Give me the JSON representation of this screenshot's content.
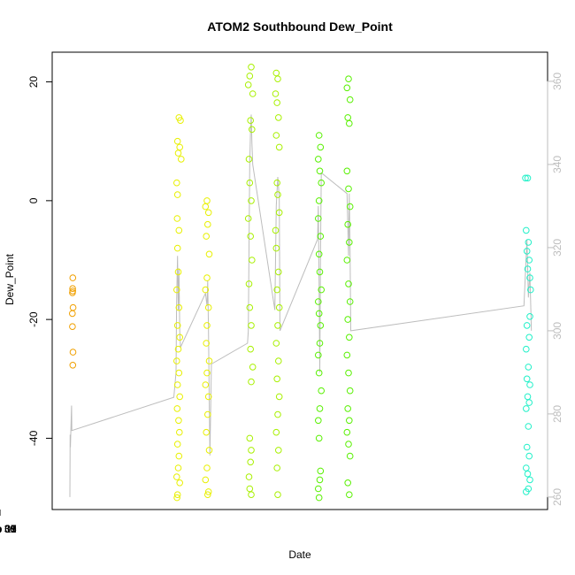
{
  "chart_data": {
    "type": "scatter",
    "title": "ATOM2 Southbound Dew_Point",
    "xlabel": "Date",
    "ylabel": "Dew_Point",
    "xlim": [
      "2023-01-28T12:00",
      "2023-02-11T12:00"
    ],
    "ylim": [
      -52,
      25
    ],
    "y2lim": [
      257,
      367
    ],
    "x_ticks": [
      {
        "value": "2023-01-30",
        "label": "Jan 30"
      },
      {
        "value": "2023-02-01",
        "label": "Feb 01"
      },
      {
        "value": "2023-02-03",
        "label": "Feb 03"
      },
      {
        "value": "2023-02-05",
        "label": "Feb 05"
      },
      {
        "value": "2023-02-07",
        "label": "Feb 07"
      },
      {
        "value": "2023-02-09",
        "label": "Feb 09"
      },
      {
        "value": "2023-02-11",
        "label": "Feb 11"
      }
    ],
    "y_ticks": [
      -40,
      -20,
      0,
      20
    ],
    "y2_ticks": [
      260,
      280,
      300,
      320,
      340,
      360
    ],
    "series": [
      {
        "color": "#f0a000",
        "points": [
          [
            "2023-01-29T02:00",
            -13
          ],
          [
            "2023-01-29T01:50",
            -14.8
          ],
          [
            "2023-01-29T01:45",
            -15.5
          ],
          [
            "2023-01-29T01:55",
            -15.2
          ],
          [
            "2023-01-29T02:10",
            -18
          ],
          [
            "2023-01-29T01:40",
            -19
          ],
          [
            "2023-01-29T01:45",
            -21.2
          ],
          [
            "2023-01-29T02:05",
            -25.5
          ],
          [
            "2023-01-29T02:00",
            -27.7
          ]
        ]
      },
      {
        "color": "#e8f000",
        "points": [
          [
            "2023-02-01T02:00",
            14
          ],
          [
            "2023-02-01T03:00",
            13.5
          ],
          [
            "2023-02-01T01:00",
            10
          ],
          [
            "2023-02-01T02:30",
            9
          ],
          [
            "2023-02-01T01:30",
            8
          ],
          [
            "2023-02-01T03:30",
            7
          ],
          [
            "2023-02-01T00:30",
            3
          ],
          [
            "2023-02-01T01:00",
            1
          ],
          [
            "2023-02-01T00:45",
            -3
          ],
          [
            "2023-02-01T02:00",
            -5
          ],
          [
            "2023-02-01T01:00",
            -8
          ],
          [
            "2023-02-01T01:30",
            -12
          ],
          [
            "2023-02-01T00:30",
            -15
          ],
          [
            "2023-02-01T02:00",
            -18
          ],
          [
            "2023-02-01T01:00",
            -21
          ],
          [
            "2023-02-01T02:30",
            -23
          ],
          [
            "2023-02-01T01:30",
            -25
          ],
          [
            "2023-02-01T00:30",
            -27
          ],
          [
            "2023-02-01T02:00",
            -29
          ],
          [
            "2023-02-01T01:00",
            -31
          ],
          [
            "2023-02-01T02:30",
            -33
          ],
          [
            "2023-02-01T00:45",
            -35
          ],
          [
            "2023-02-01T01:45",
            -37
          ],
          [
            "2023-02-01T02:15",
            -39
          ],
          [
            "2023-02-01T01:00",
            -41
          ],
          [
            "2023-02-01T02:00",
            -43
          ],
          [
            "2023-02-01T01:30",
            -45
          ],
          [
            "2023-02-01T00:30",
            -46.5
          ],
          [
            "2023-02-01T02:30",
            -47.5
          ],
          [
            "2023-02-01T01:00",
            -49.5
          ],
          [
            "2023-02-01T00:40",
            -50
          ],
          [
            "2023-02-01T21:00",
            0
          ],
          [
            "2023-02-01T20:00",
            -1
          ],
          [
            "2023-02-01T22:00",
            -2
          ],
          [
            "2023-02-01T21:30",
            -4
          ],
          [
            "2023-02-01T20:30",
            -6
          ],
          [
            "2023-02-01T22:30",
            -9
          ],
          [
            "2023-02-01T21:00",
            -13
          ],
          [
            "2023-02-01T20:00",
            -15
          ],
          [
            "2023-02-01T22:00",
            -18
          ],
          [
            "2023-02-01T21:00",
            -21
          ],
          [
            "2023-02-01T20:30",
            -24
          ],
          [
            "2023-02-01T22:30",
            -27
          ],
          [
            "2023-02-01T21:00",
            -29
          ],
          [
            "2023-02-01T20:00",
            -31
          ],
          [
            "2023-02-01T22:00",
            -33
          ],
          [
            "2023-02-01T21:30",
            -36
          ],
          [
            "2023-02-01T20:30",
            -39
          ],
          [
            "2023-02-01T22:30",
            -42
          ],
          [
            "2023-02-01T21:00",
            -45
          ],
          [
            "2023-02-01T20:00",
            -47
          ],
          [
            "2023-02-01T22:00",
            -49
          ],
          [
            "2023-02-01T21:30",
            -49.5
          ]
        ]
      },
      {
        "color": "#a8f000",
        "points": [
          [
            "2023-02-03T03:00",
            22.5
          ],
          [
            "2023-02-03T02:00",
            21
          ],
          [
            "2023-02-03T01:00",
            19.5
          ],
          [
            "2023-02-03T04:00",
            18
          ],
          [
            "2023-02-03T02:30",
            13.5
          ],
          [
            "2023-02-03T03:30",
            12
          ],
          [
            "2023-02-03T01:30",
            7
          ],
          [
            "2023-02-03T02:00",
            3
          ],
          [
            "2023-02-03T03:00",
            0
          ],
          [
            "2023-02-03T01:00",
            -3
          ],
          [
            "2023-02-03T02:30",
            -6
          ],
          [
            "2023-02-03T03:30",
            -10
          ],
          [
            "2023-02-03T01:30",
            -14
          ],
          [
            "2023-02-03T02:00",
            -18
          ],
          [
            "2023-02-03T03:00",
            -21
          ],
          [
            "2023-02-03T02:30",
            -25
          ],
          [
            "2023-02-03T04:00",
            -28
          ],
          [
            "2023-02-03T03:00",
            -30.5
          ],
          [
            "2023-02-03T02:00",
            -40
          ],
          [
            "2023-02-03T03:00",
            -42
          ],
          [
            "2023-02-03T02:30",
            -44
          ],
          [
            "2023-02-03T01:30",
            -46.5
          ],
          [
            "2023-02-03T02:00",
            -48.5
          ],
          [
            "2023-02-03T03:00",
            -49.5
          ],
          [
            "2023-02-03T20:00",
            21.5
          ],
          [
            "2023-02-03T21:00",
            20.5
          ],
          [
            "2023-02-03T19:30",
            18
          ],
          [
            "2023-02-03T20:30",
            16.5
          ],
          [
            "2023-02-03T21:30",
            14
          ],
          [
            "2023-02-03T20:00",
            11
          ],
          [
            "2023-02-03T22:00",
            9
          ],
          [
            "2023-02-03T20:30",
            3
          ],
          [
            "2023-02-03T21:00",
            1
          ],
          [
            "2023-02-03T22:00",
            -2
          ],
          [
            "2023-02-03T19:30",
            -5
          ],
          [
            "2023-02-03T20:00",
            -8
          ],
          [
            "2023-02-03T21:30",
            -12
          ],
          [
            "2023-02-03T20:30",
            -15
          ],
          [
            "2023-02-03T22:00",
            -18
          ],
          [
            "2023-02-03T21:00",
            -21
          ],
          [
            "2023-02-03T20:00",
            -24
          ],
          [
            "2023-02-03T21:30",
            -27
          ],
          [
            "2023-02-03T20:30",
            -30
          ],
          [
            "2023-02-03T22:00",
            -33
          ],
          [
            "2023-02-03T21:00",
            -36
          ],
          [
            "2023-02-03T20:00",
            -39
          ],
          [
            "2023-02-03T21:30",
            -42
          ],
          [
            "2023-02-03T20:30",
            -45
          ],
          [
            "2023-02-03T21:00",
            -49.5
          ]
        ]
      },
      {
        "color": "#58f000",
        "points": [
          [
            "2023-02-05T01:00",
            11
          ],
          [
            "2023-02-05T02:00",
            9
          ],
          [
            "2023-02-05T00:30",
            7
          ],
          [
            "2023-02-05T01:30",
            5
          ],
          [
            "2023-02-05T02:30",
            3
          ],
          [
            "2023-02-05T01:00",
            0
          ],
          [
            "2023-02-05T00:30",
            -3
          ],
          [
            "2023-02-05T02:00",
            -6
          ],
          [
            "2023-02-05T01:00",
            -9
          ],
          [
            "2023-02-05T01:30",
            -12
          ],
          [
            "2023-02-05T02:30",
            -15
          ],
          [
            "2023-02-05T00:30",
            -17
          ],
          [
            "2023-02-05T01:00",
            -19
          ],
          [
            "2023-02-05T02:00",
            -21
          ],
          [
            "2023-02-05T01:30",
            -24
          ],
          [
            "2023-02-05T00:30",
            -26
          ],
          [
            "2023-02-05T01:00",
            -29
          ],
          [
            "2023-02-05T02:30",
            -32
          ],
          [
            "2023-02-05T01:30",
            -35
          ],
          [
            "2023-02-05T00:30",
            -37
          ],
          [
            "2023-02-05T01:00",
            -40
          ],
          [
            "2023-02-05T02:00",
            -45.5
          ],
          [
            "2023-02-05T01:30",
            -47
          ],
          [
            "2023-02-05T00:30",
            -48.5
          ],
          [
            "2023-02-05T01:00",
            -50
          ],
          [
            "2023-02-05T21:00",
            20.5
          ],
          [
            "2023-02-05T20:00",
            19
          ],
          [
            "2023-02-05T22:00",
            17
          ],
          [
            "2023-02-05T20:30",
            14
          ],
          [
            "2023-02-05T21:30",
            13
          ],
          [
            "2023-02-05T20:00",
            5
          ],
          [
            "2023-02-05T21:00",
            2
          ],
          [
            "2023-02-05T22:00",
            -1
          ],
          [
            "2023-02-05T20:30",
            -4
          ],
          [
            "2023-02-05T21:30",
            -7
          ],
          [
            "2023-02-05T20:00",
            -10
          ],
          [
            "2023-02-05T21:00",
            -14
          ],
          [
            "2023-02-05T22:00",
            -17
          ],
          [
            "2023-02-05T20:30",
            -20
          ],
          [
            "2023-02-05T21:30",
            -23
          ],
          [
            "2023-02-05T20:00",
            -26
          ],
          [
            "2023-02-05T21:00",
            -29
          ],
          [
            "2023-02-05T22:00",
            -32
          ],
          [
            "2023-02-05T20:30",
            -35
          ],
          [
            "2023-02-05T21:30",
            -37
          ],
          [
            "2023-02-05T20:00",
            -39
          ],
          [
            "2023-02-05T21:00",
            -41
          ],
          [
            "2023-02-05T22:00",
            -43
          ],
          [
            "2023-02-05T20:30",
            -47.5
          ],
          [
            "2023-02-05T21:30",
            -49.5
          ]
        ]
      },
      {
        "color": "#20f0c8",
        "points": [
          [
            "2023-02-10T21:00",
            3.8
          ],
          [
            "2023-02-10T22:30",
            3.8
          ],
          [
            "2023-02-10T21:30",
            -5
          ],
          [
            "2023-02-10T23:00",
            -7
          ],
          [
            "2023-02-10T22:00",
            -8.5
          ],
          [
            "2023-02-10T23:30",
            -10
          ],
          [
            "2023-02-10T22:30",
            -11.5
          ],
          [
            "2023-02-11T00:00",
            -13
          ],
          [
            "2023-02-11T00:30",
            -15
          ],
          [
            "2023-02-11T00:00",
            -19.5
          ],
          [
            "2023-02-10T22:00",
            -21
          ],
          [
            "2023-02-10T23:30",
            -23
          ],
          [
            "2023-02-10T21:30",
            -25
          ],
          [
            "2023-02-10T23:00",
            -28
          ],
          [
            "2023-02-10T22:00",
            -30
          ],
          [
            "2023-02-11T00:00",
            -31
          ],
          [
            "2023-02-10T22:30",
            -33
          ],
          [
            "2023-02-10T23:30",
            -34
          ],
          [
            "2023-02-10T21:30",
            -35
          ],
          [
            "2023-02-10T23:00",
            -38
          ],
          [
            "2023-02-10T22:00",
            -41.5
          ],
          [
            "2023-02-10T23:30",
            -43
          ],
          [
            "2023-02-10T21:30",
            -45
          ],
          [
            "2023-02-10T22:30",
            -46
          ],
          [
            "2023-02-11T00:00",
            -47
          ],
          [
            "2023-02-10T23:00",
            -48.5
          ],
          [
            "2023-02-10T21:30",
            -49
          ]
        ]
      }
    ],
    "secondary_line": {
      "color": "#bdbdbd",
      "axis": "right",
      "points": [
        [
          "2023-01-29T00:00",
          260
        ],
        [
          "2023-01-29T00:10",
          275
        ],
        [
          "2023-01-29T00:20",
          272
        ],
        [
          "2023-01-29T00:40",
          276
        ],
        [
          "2023-01-29T01:10",
          282
        ],
        [
          "2023-01-29T01:20",
          276
        ],
        [
          "2023-01-31T22:30",
          284
        ],
        [
          "2023-02-01T00:00",
          290
        ],
        [
          "2023-02-01T00:20",
          306
        ],
        [
          "2023-02-01T00:40",
          312
        ],
        [
          "2023-02-01T01:00",
          318
        ],
        [
          "2023-02-01T01:30",
          305
        ],
        [
          "2023-02-01T02:00",
          315
        ],
        [
          "2023-02-01T02:30",
          300
        ],
        [
          "2023-02-01T03:00",
          296
        ],
        [
          "2023-02-01T20:00",
          309
        ],
        [
          "2023-02-01T21:00",
          306
        ],
        [
          "2023-02-01T21:30",
          312
        ],
        [
          "2023-02-01T22:00",
          300
        ],
        [
          "2023-02-01T22:30",
          284
        ],
        [
          "2023-02-01T23:00",
          270
        ],
        [
          "2023-02-02T00:00",
          292
        ],
        [
          "2023-02-03T00:30",
          297
        ],
        [
          "2023-02-03T01:00",
          300
        ],
        [
          "2023-02-03T01:30",
          320
        ],
        [
          "2023-02-03T02:00",
          340
        ],
        [
          "2023-02-03T02:30",
          348
        ],
        [
          "2023-02-03T03:00",
          352
        ],
        [
          "2023-02-03T03:30",
          345
        ],
        [
          "2023-02-03T04:00",
          340
        ],
        [
          "2023-02-03T19:00",
          305
        ],
        [
          "2023-02-03T20:00",
          330
        ],
        [
          "2023-02-03T21:00",
          337
        ],
        [
          "2023-02-03T22:00",
          332
        ],
        [
          "2023-02-03T22:30",
          300
        ],
        [
          "2023-02-05T00:00",
          322
        ],
        [
          "2023-02-05T00:30",
          330
        ],
        [
          "2023-02-05T01:00",
          312
        ],
        [
          "2023-02-05T01:30",
          290
        ],
        [
          "2023-02-05T02:00",
          318
        ],
        [
          "2023-02-05T02:30",
          338
        ],
        [
          "2023-02-05T20:00",
          333
        ],
        [
          "2023-02-05T20:30",
          325
        ],
        [
          "2023-02-05T21:00",
          318
        ],
        [
          "2023-02-05T21:30",
          333
        ],
        [
          "2023-02-05T22:00",
          320
        ],
        [
          "2023-02-05T22:30",
          300
        ],
        [
          "2023-02-10T20:00",
          306
        ],
        [
          "2023-02-10T21:00",
          314
        ],
        [
          "2023-02-10T22:00",
          322
        ],
        [
          "2023-02-10T23:00",
          308
        ],
        [
          "2023-02-11T00:00",
          314
        ],
        [
          "2023-02-11T01:00",
          300
        ]
      ]
    }
  }
}
